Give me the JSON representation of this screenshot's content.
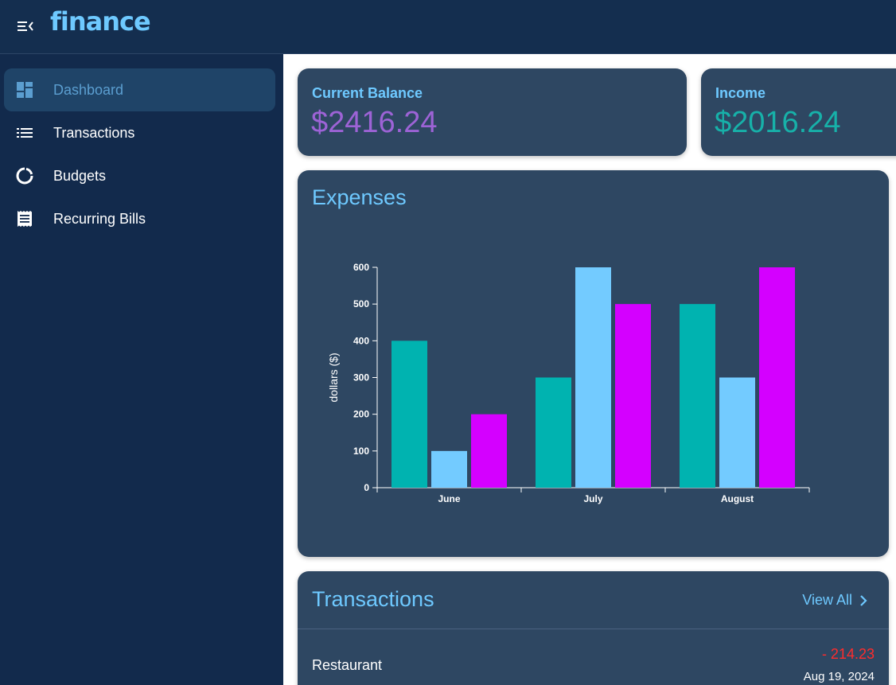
{
  "header": {
    "logo": "finance",
    "menu_icon": "menu-collapse-icon"
  },
  "sidebar": {
    "items": [
      {
        "label": "Dashboard",
        "icon": "dashboard-icon",
        "active": true
      },
      {
        "label": "Transactions",
        "icon": "list-icon",
        "active": false
      },
      {
        "label": "Budgets",
        "icon": "donut-chart-icon",
        "active": false
      },
      {
        "label": "Recurring Bills",
        "icon": "receipt-icon",
        "active": false
      }
    ]
  },
  "stats": {
    "balance": {
      "title": "Current Balance",
      "value": "$2416.24",
      "color": "#9d63d6"
    },
    "income": {
      "title": "Income",
      "value": "$2016.24",
      "color": "#17b1a9"
    }
  },
  "expenses": {
    "title": "Expenses"
  },
  "chart_data": {
    "type": "bar",
    "categories": [
      "June",
      "July",
      "August"
    ],
    "series": [
      {
        "values": [
          400,
          300,
          500
        ],
        "color": "#00b3b0"
      },
      {
        "values": [
          100,
          600,
          300
        ],
        "color": "#73cbff"
      },
      {
        "values": [
          200,
          500,
          600
        ],
        "color": "#d400ff"
      }
    ],
    "ylabel": "dollars ($)",
    "ylim": [
      0,
      600
    ],
    "yticks": [
      0,
      100,
      200,
      300,
      400,
      500,
      600
    ],
    "grid": false
  },
  "transactions": {
    "title": "Transactions",
    "view_all": "View All",
    "items": [
      {
        "name": "Restaurant",
        "amount": "- 214.23",
        "date": "Aug 19, 2024"
      }
    ]
  }
}
